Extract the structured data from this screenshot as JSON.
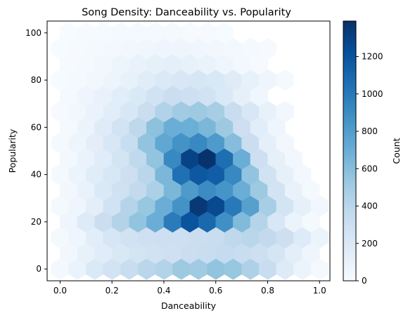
{
  "chart_data": {
    "type": "heatmap",
    "subtype": "hexbin",
    "title": "Song Density: Danceability vs. Popularity",
    "xlabel": "Danceability",
    "ylabel": "Popularity",
    "xlim": [
      -0.05,
      1.04
    ],
    "ylim": [
      -5,
      105
    ],
    "xticks": [
      "0.0",
      "0.2",
      "0.4",
      "0.6",
      "0.8",
      "1.0"
    ],
    "yticks": [
      "0",
      "20",
      "40",
      "60",
      "80",
      "100"
    ],
    "grid": false,
    "colormap": "Blues",
    "colorbar": {
      "label": "Count",
      "min": 0,
      "max": 1390,
      "ticks": [
        "0",
        "200",
        "400",
        "600",
        "800",
        "1000",
        "1200"
      ]
    },
    "hex_grid": {
      "x_spacing": 0.0667,
      "y_spacing": 6.67,
      "x_start": 0.0,
      "y_start": 0.0,
      "rows_offset_every_other": true
    },
    "rows": [
      {
        "y": 0,
        "x_start": 0.0,
        "counts": [
          30,
          90,
          200,
          260,
          330,
          400,
          430,
          520,
          510,
          560,
          540,
          450,
          330,
          180,
          80,
          20
        ]
      },
      {
        "y": 6.67,
        "x_start": 0.0333,
        "counts": [
          40,
          110,
          160,
          210,
          250,
          270,
          290,
          310,
          330,
          350,
          330,
          300,
          240,
          140,
          60
        ]
      },
      {
        "y": 13.33,
        "x_start": 0.0,
        "counts": [
          20,
          60,
          150,
          230,
          270,
          290,
          300,
          300,
          320,
          330,
          380,
          400,
          360,
          300,
          180,
          80,
          20
        ]
      },
      {
        "y": 20,
        "x_start": 0.0333,
        "counts": [
          60,
          180,
          320,
          430,
          560,
          700,
          990,
          1200,
          1090,
          880,
          620,
          420,
          220,
          80,
          20
        ]
      },
      {
        "y": 26.67,
        "x_start": 0.0,
        "counts": [
          20,
          60,
          140,
          270,
          420,
          540,
          700,
          860,
          1350,
          1260,
          1000,
          780,
          480,
          250,
          120,
          40
        ]
      },
      {
        "y": 33.33,
        "x_start": 0.0333,
        "counts": [
          40,
          100,
          200,
          280,
          360,
          460,
          640,
          820,
          900,
          850,
          700,
          520,
          260,
          100,
          20
        ]
      },
      {
        "y": 40,
        "x_start": 0.0,
        "counts": [
          20,
          80,
          160,
          220,
          300,
          400,
          640,
          1050,
          1180,
          1150,
          920,
          560,
          270,
          120,
          30
        ]
      },
      {
        "y": 46.67,
        "x_start": 0.0333,
        "counts": [
          30,
          90,
          160,
          250,
          370,
          560,
          920,
          1290,
          1380,
          1060,
          700,
          300,
          120,
          40
        ]
      },
      {
        "y": 53.33,
        "x_start": 0.0,
        "counts": [
          20,
          70,
          140,
          220,
          330,
          560,
          740,
          860,
          920,
          820,
          600,
          320,
          130,
          40
        ]
      },
      {
        "y": 60,
        "x_start": 0.0333,
        "counts": [
          20,
          80,
          170,
          260,
          380,
          580,
          700,
          690,
          640,
          520,
          300,
          150,
          60
        ]
      },
      {
        "y": 66.67,
        "x_start": 0.0,
        "counts": [
          10,
          40,
          90,
          150,
          220,
          320,
          440,
          510,
          520,
          480,
          330,
          220,
          110,
          40
        ]
      },
      {
        "y": 73.33,
        "x_start": 0.0333,
        "counts": [
          20,
          60,
          100,
          150,
          200,
          270,
          320,
          300,
          270,
          200,
          120,
          50
        ]
      },
      {
        "y": 80,
        "x_start": 0.0,
        "counts": [
          5,
          20,
          40,
          70,
          110,
          160,
          200,
          220,
          230,
          210,
          170,
          110,
          60,
          20
        ]
      },
      {
        "y": 86.67,
        "x_start": 0.0333,
        "counts": [
          10,
          20,
          40,
          70,
          100,
          120,
          130,
          110,
          90,
          60,
          30,
          10
        ]
      },
      {
        "y": 93.33,
        "x_start": 0.0,
        "counts": [
          5,
          10,
          20,
          30,
          40,
          50,
          60,
          60,
          50,
          40,
          30,
          20,
          10
        ]
      },
      {
        "y": 100,
        "x_start": 0.0333,
        "counts": [
          5,
          10,
          15,
          20,
          25,
          25,
          20,
          15,
          10,
          5
        ]
      }
    ]
  }
}
